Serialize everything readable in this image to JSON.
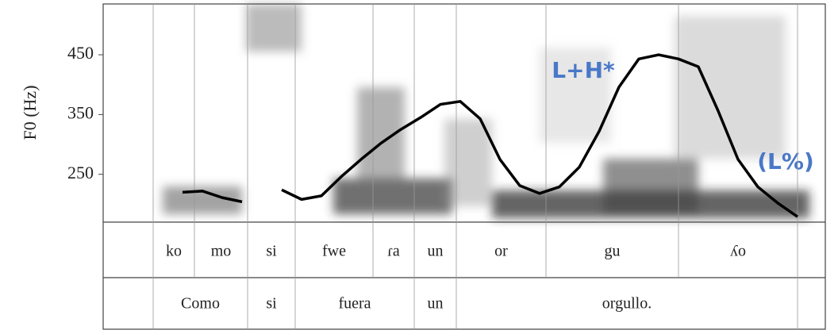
{
  "chart_data": {
    "type": "line",
    "y_label": "F0 (Hz)",
    "ylim": [
      170,
      535
    ],
    "yticks": [
      250,
      350,
      450
    ],
    "categories": [
      null,
      null,
      null,
      null,
      null,
      null,
      null,
      null,
      null,
      null,
      null,
      null,
      null,
      null,
      null,
      null,
      null,
      null,
      null,
      null,
      null,
      null,
      null,
      null,
      null,
      null,
      null,
      null,
      null,
      null,
      null,
      null
    ],
    "series": [
      {
        "color": "#000000",
        "values": [
          220,
          222,
          211,
          204,
          null,
          224,
          208,
          214,
          246,
          275,
          302,
          325,
          345,
          367,
          372,
          343,
          275,
          231,
          218,
          229,
          262,
          322,
          396,
          443,
          450,
          443,
          430,
          356,
          275,
          229,
          202,
          179
        ]
      }
    ],
    "annotations": [
      "L+H*",
      "(L%)"
    ]
  },
  "tiers": {
    "syllables": [
      "ko",
      "mo",
      "si",
      "fwe",
      "ɾa",
      "un",
      "or",
      "gu",
      "ʎo"
    ],
    "words": [
      "Como",
      "si",
      "fuera",
      "un",
      "orgullo."
    ]
  }
}
